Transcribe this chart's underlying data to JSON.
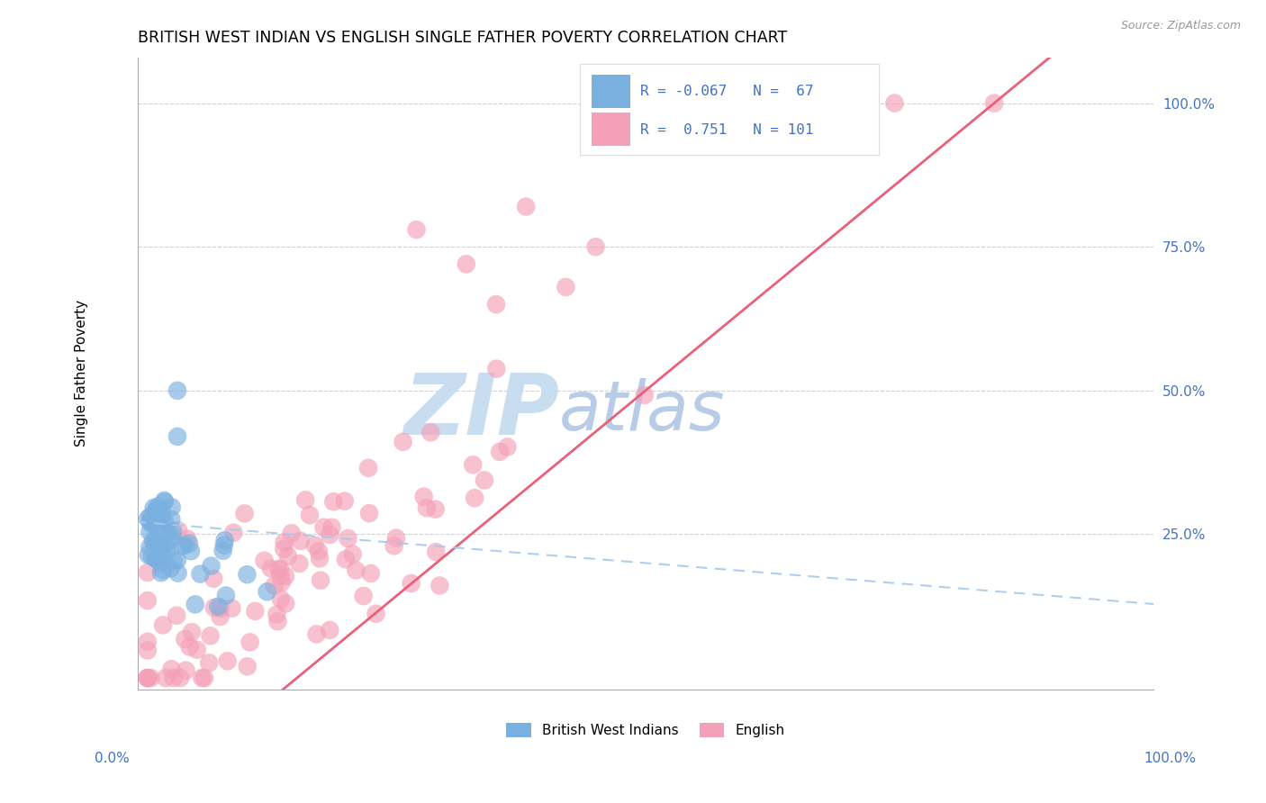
{
  "title": "BRITISH WEST INDIAN VS ENGLISH SINGLE FATHER POVERTY CORRELATION CHART",
  "source": "Source: ZipAtlas.com",
  "ylabel": "Single Father Poverty",
  "legend_label1": "British West Indians",
  "legend_label2": "English",
  "r1": -0.067,
  "n1": 67,
  "r2": 0.751,
  "n2": 101,
  "color_bwi": "#7ab0e0",
  "color_bwi_fill": "#a8ccee",
  "color_eng": "#f4a0b8",
  "color_eng_line": "#e8607a",
  "color_bwi_line": "#a8c8e8",
  "grid_color": "#cccccc",
  "axis_color": "#aaaaaa",
  "right_tick_color": "#4472c4",
  "watermark_zip_color": "#c8ddf0",
  "watermark_atlas_color": "#b8cce8"
}
